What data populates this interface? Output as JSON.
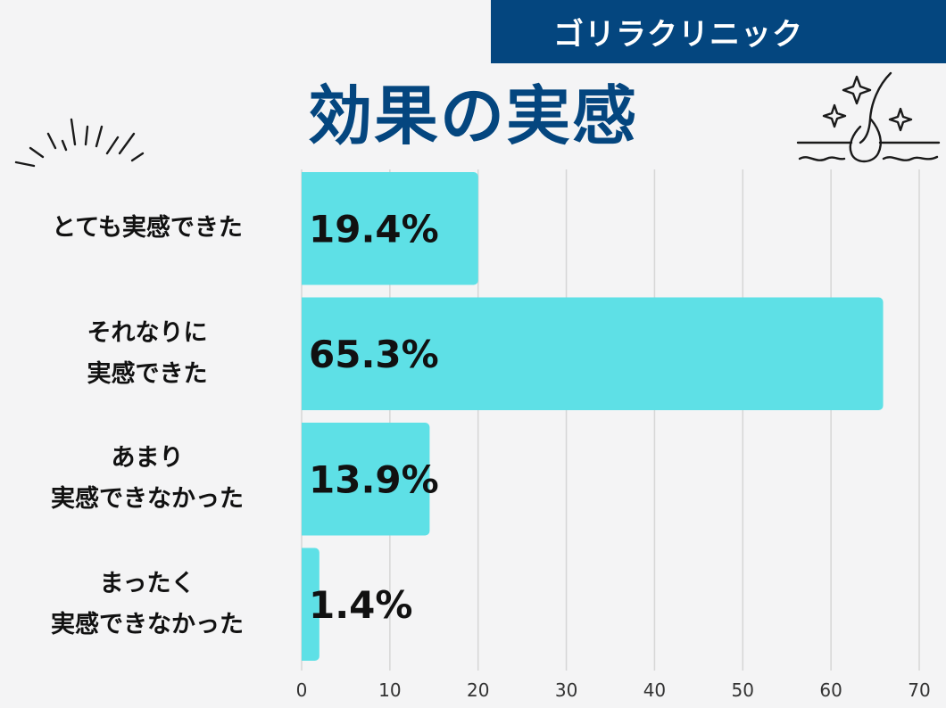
{
  "header": {
    "brand": "ゴリラクリニック",
    "title": "効果の実感"
  },
  "colors": {
    "brand_bg": "#04467f",
    "bar": "#5ee0e6",
    "grid": "#d6d6d6",
    "text": "#111111"
  },
  "icons": {
    "left": "sparkle-lines-icon",
    "right": "hair-follicle-sparkle-icon"
  },
  "chart_data": {
    "type": "bar",
    "orientation": "horizontal",
    "categories": [
      "とても実感できた",
      "それなりに\n実感できた",
      "あまり\n実感できなかった",
      "まったく\n実感できなかった"
    ],
    "values": [
      19.4,
      65.3,
      13.9,
      1.4
    ],
    "data_labels": [
      "19.4%",
      "65.3%",
      "13.9%",
      "1.4%"
    ],
    "xlim": [
      0,
      70
    ],
    "xticks": [
      0,
      10,
      20,
      30,
      40,
      50,
      60,
      70
    ],
    "grid": true
  }
}
